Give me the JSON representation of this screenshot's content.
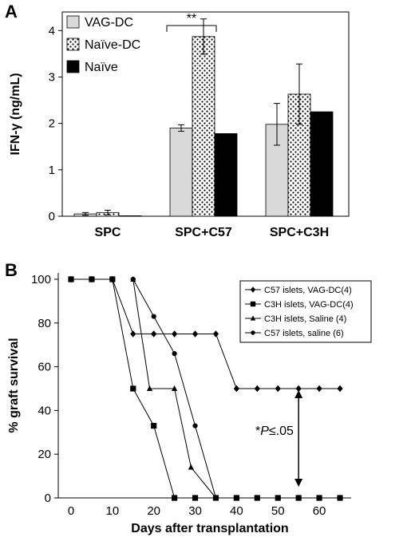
{
  "chart_data": [
    {
      "panel": "A",
      "type": "bar",
      "ylabel": "IFN-γ (ng/mL)",
      "ylim": [
        0,
        4.4
      ],
      "yticks": [
        "0",
        "1",
        "2",
        "3",
        "4"
      ],
      "categories": [
        "SPC",
        "SPC+C57",
        "SPC+C3H"
      ],
      "series": [
        {
          "name": "VAG-DC",
          "color": "#d9d9d9",
          "pattern": "solid",
          "values": [
            0.05,
            1.9,
            1.98
          ],
          "errors": [
            0.03,
            0.07,
            0.45
          ]
        },
        {
          "name": "Naïve-DC",
          "color": "#ffffff",
          "pattern": "dots",
          "values": [
            0.08,
            3.87,
            2.63
          ],
          "errors": [
            0.05,
            0.38,
            0.65
          ]
        },
        {
          "name": "Naïve",
          "color": "#000000",
          "pattern": "solid",
          "values": [
            0.01,
            1.78,
            2.25
          ],
          "errors": [
            0,
            0,
            0
          ]
        }
      ],
      "significance": "**",
      "legend_position": "top-left"
    },
    {
      "panel": "B",
      "type": "line",
      "xlabel": "Days after transplantation",
      "ylabel": "% graft survival",
      "xlim": [
        -3,
        70
      ],
      "ylim": [
        0,
        100
      ],
      "xticks": [
        "0",
        "10",
        "20",
        "30",
        "40",
        "50",
        "60"
      ],
      "yticks": [
        "0",
        "20",
        "40",
        "60",
        "80",
        "100"
      ],
      "series": [
        {
          "name": "C57 islets, VAG-DC(4)",
          "marker": "diamond",
          "x": [
            0,
            5,
            10,
            15,
            20,
            25,
            30,
            35,
            40,
            45,
            50,
            55,
            60,
            65
          ],
          "y": [
            100,
            100,
            100,
            75,
            75,
            75,
            75,
            75,
            50,
            50,
            50,
            50,
            50,
            50
          ]
        },
        {
          "name": "C3H islets, VAG-DC(4)",
          "marker": "square",
          "x": [
            0,
            5,
            10,
            15,
            20,
            25,
            30,
            35,
            40,
            45,
            50,
            55,
            60,
            65
          ],
          "y": [
            100,
            100,
            100,
            50,
            33,
            0,
            0,
            0,
            0,
            0,
            0,
            0,
            0,
            0
          ]
        },
        {
          "name": "C3H islets, Saline (4)",
          "marker": "triangle",
          "x": [
            15,
            19,
            25,
            29,
            35
          ],
          "y": [
            100,
            50,
            50,
            14,
            0
          ]
        },
        {
          "name": "C57 islets, saline (6)",
          "marker": "circle",
          "x": [
            15,
            20,
            25,
            30,
            35
          ],
          "y": [
            100,
            83,
            66,
            33,
            0
          ]
        }
      ],
      "annotation": {
        "star": "*",
        "p": "P",
        "rest": "≤.05",
        "x": 55,
        "y_top": 50,
        "y_bottom": 0
      },
      "legend_position": "top-right"
    }
  ]
}
